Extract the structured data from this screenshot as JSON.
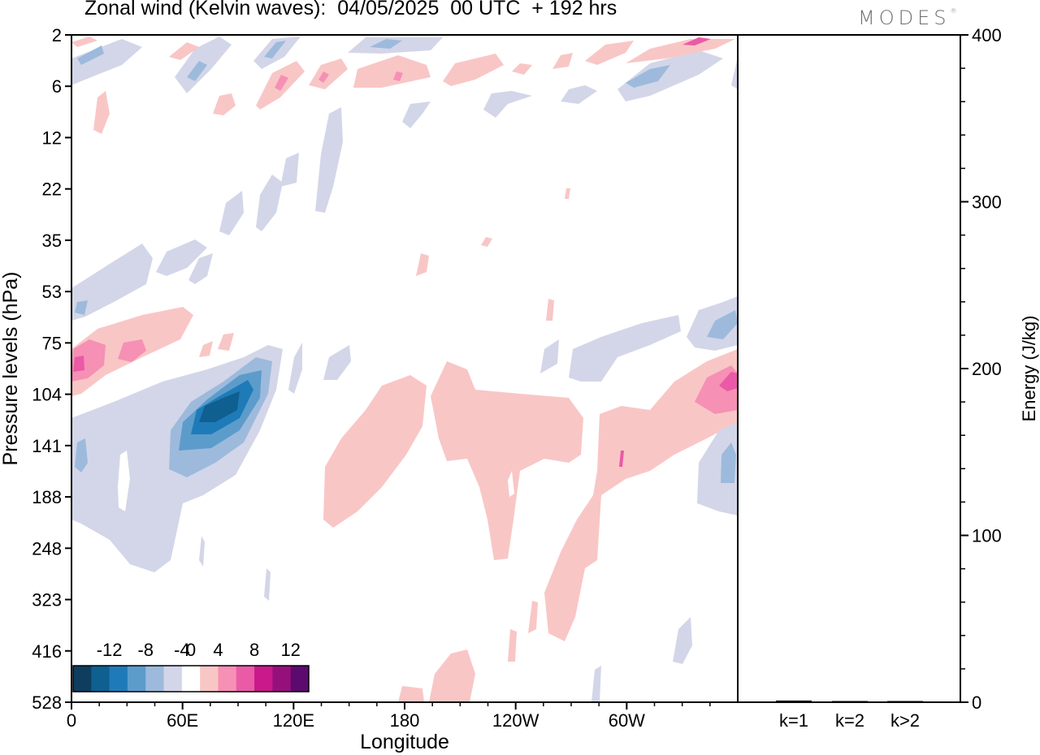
{
  "header": {
    "title": "Zonal wind (Kelvin waves):  04/05/2025  00 UTC  + 192 hrs",
    "logo": "MODES",
    "logo_mark": "®"
  },
  "chart_data": [
    {
      "type": "heatmap",
      "title": "Zonal wind (Kelvin waves):  04/05/2025  00 UTC  + 192 hrs",
      "xlabel": "Longitude",
      "ylabel": "Pressure levels (hPa)",
      "x_ticks": [
        "0",
        "60E",
        "120E",
        "180",
        "120W",
        "60W"
      ],
      "x_tick_degrees": [
        0,
        60,
        120,
        180,
        240,
        300
      ],
      "x_range_degrees": [
        0,
        360
      ],
      "y_ticks": [
        "2",
        "6",
        "12",
        "22",
        "35",
        "53",
        "75",
        "104",
        "141",
        "188",
        "248",
        "323",
        "416",
        "528"
      ],
      "colorbar": {
        "labels": [
          "-12",
          "-8",
          "-4",
          "0",
          "4",
          "8",
          "12"
        ],
        "levels": [
          -14,
          -12,
          -10,
          -8,
          -6,
          -4,
          -2,
          2,
          4,
          6,
          8,
          10,
          12,
          14
        ],
        "colors": [
          "#0e3d5e",
          "#0f5f91",
          "#1f7bb8",
          "#5c9ccb",
          "#9dbadc",
          "#d3d6e8",
          "#ffffff",
          "#f9c6c6",
          "#f690b4",
          "#ea5aa6",
          "#c9198a",
          "#96107c",
          "#5c0a6e"
        ]
      },
      "features": [
        {
          "name": "upper stratosphere pairs",
          "lon": [
            0,
            360
          ],
          "level": [
            2,
            12
          ],
          "value": "+/-4 to +/-8"
        },
        {
          "name": "negative tilted band",
          "lon": [
            0,
            110
          ],
          "level": [
            22,
            75
          ],
          "value": -4
        },
        {
          "name": "positive band",
          "lon": [
            0,
            55
          ],
          "level": [
            75,
            104
          ],
          "value": 8
        },
        {
          "name": "negative core",
          "lon": [
            50,
            115
          ],
          "level": [
            75,
            188
          ],
          "value": -12
        },
        {
          "name": "negative broad area",
          "lon": [
            0,
            75
          ],
          "level": [
            104,
            248
          ],
          "value": -4
        },
        {
          "name": "positive area",
          "lon": [
            130,
            280
          ],
          "level": [
            104,
            323
          ],
          "value": 4
        },
        {
          "name": "positive area east",
          "lon": [
            260,
            360
          ],
          "level": [
            75,
            248
          ],
          "value": 8
        },
        {
          "name": "negative area east",
          "lon": [
            250,
            360
          ],
          "level": [
            53,
            104
          ],
          "value": -6
        }
      ]
    },
    {
      "type": "bar",
      "categories": [
        "k=1",
        "k=2",
        "k>2"
      ],
      "values": [
        1,
        0,
        0
      ],
      "ylabel": "Energy (J/kg)",
      "ylim": [
        0,
        400
      ],
      "y_ticks": [
        "0",
        "100",
        "200",
        "300",
        "400"
      ]
    }
  ]
}
